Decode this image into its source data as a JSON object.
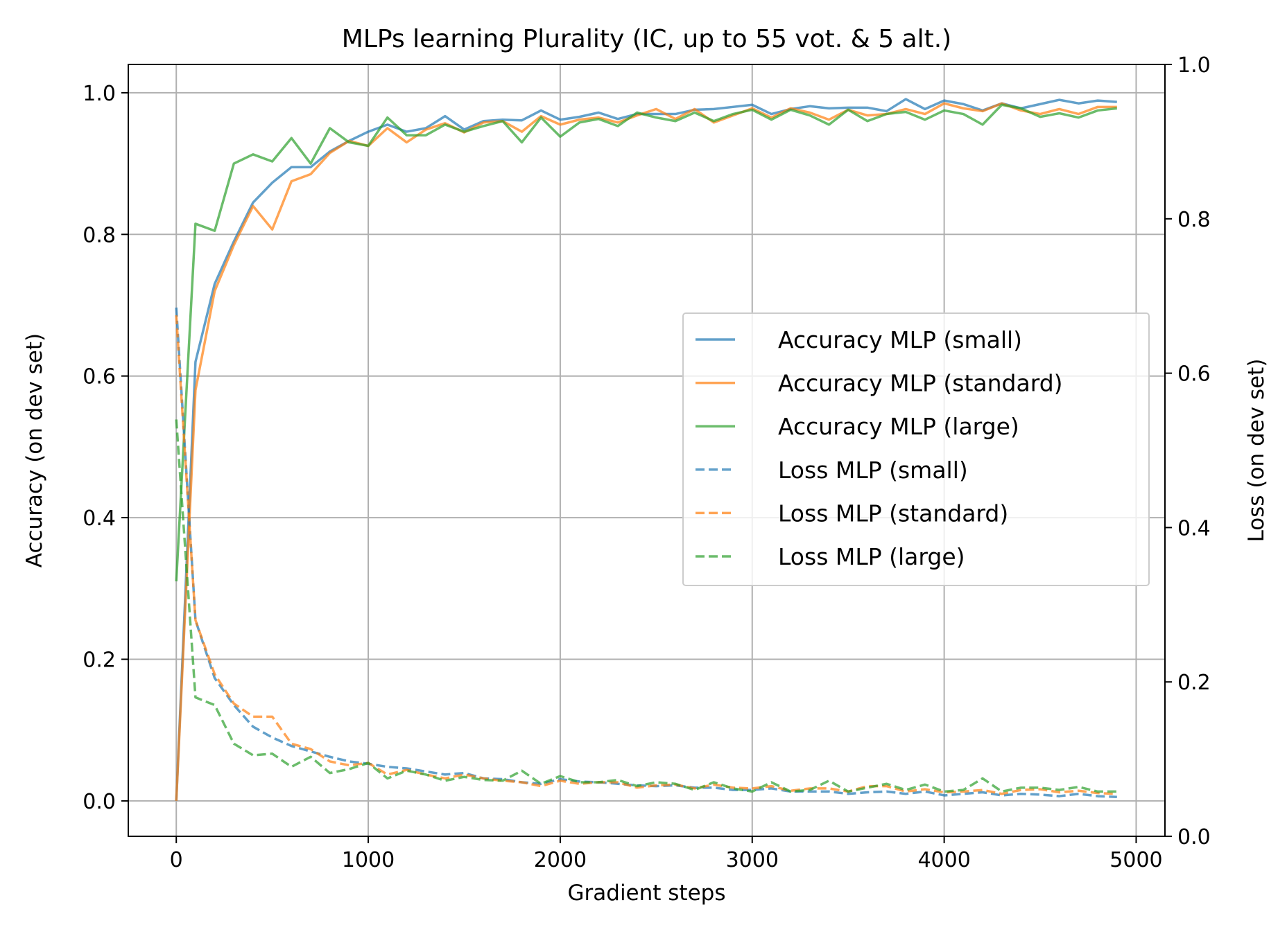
{
  "chart_data": {
    "type": "line",
    "title": "MLPs learning Plurality (IC, up to 55 vot. & 5 alt.)",
    "xlabel": "Gradient steps",
    "ylabel": "Accuracy (on dev set)",
    "ylabel_right": "Loss (on dev set)",
    "xlim": [
      -250,
      5150
    ],
    "ylim": [
      -0.05,
      1.04
    ],
    "ylim_right": [
      0.0,
      1.0
    ],
    "xticks": [
      0,
      1000,
      2000,
      3000,
      4000,
      5000
    ],
    "yticks": [
      0.0,
      0.2,
      0.4,
      0.6,
      0.8,
      1.0
    ],
    "yticks_right": [
      0.0,
      0.2,
      0.4,
      0.6,
      0.8,
      1.0
    ],
    "xtick_labels": [
      "0",
      "1000",
      "2000",
      "3000",
      "4000",
      "5000"
    ],
    "ytick_labels": [
      "0.0",
      "0.2",
      "0.4",
      "0.6",
      "0.8",
      "1.0"
    ],
    "ytick_labels_right": [
      "0.0",
      "0.2",
      "0.4",
      "0.6",
      "0.8",
      "1.0"
    ],
    "grid": true,
    "legend_position": "center-right",
    "x": [
      0,
      100,
      200,
      300,
      400,
      500,
      600,
      700,
      800,
      900,
      1000,
      1100,
      1200,
      1300,
      1400,
      1500,
      1600,
      1700,
      1800,
      1900,
      2000,
      2100,
      2200,
      2300,
      2400,
      2500,
      2600,
      2700,
      2800,
      2900,
      3000,
      3100,
      3200,
      3300,
      3400,
      3500,
      3600,
      3700,
      3800,
      3900,
      4000,
      4100,
      4200,
      4300,
      4400,
      4500,
      4600,
      4700,
      4800,
      4900
    ],
    "series": [
      {
        "name": "Accuracy MLP (small)",
        "axis": "left",
        "style": "solid",
        "color": "#1f77b4",
        "values": [
          0.0,
          0.62,
          0.73,
          0.79,
          0.845,
          0.873,
          0.895,
          0.895,
          0.917,
          0.932,
          0.945,
          0.955,
          0.945,
          0.95,
          0.967,
          0.948,
          0.96,
          0.962,
          0.961,
          0.975,
          0.962,
          0.966,
          0.972,
          0.963,
          0.97,
          0.97,
          0.97,
          0.976,
          0.977,
          0.98,
          0.983,
          0.97,
          0.977,
          0.981,
          0.978,
          0.979,
          0.979,
          0.974,
          0.991,
          0.977,
          0.989,
          0.984,
          0.975,
          0.985,
          0.978,
          0.984,
          0.99,
          0.985,
          0.989,
          0.987
        ]
      },
      {
        "name": "Accuracy MLP (standard)",
        "axis": "left",
        "style": "solid",
        "color": "#ff7f0e",
        "values": [
          0.0,
          0.58,
          0.72,
          0.785,
          0.84,
          0.807,
          0.875,
          0.885,
          0.915,
          0.932,
          0.925,
          0.95,
          0.93,
          0.948,
          0.957,
          0.944,
          0.958,
          0.96,
          0.945,
          0.967,
          0.955,
          0.962,
          0.965,
          0.958,
          0.968,
          0.977,
          0.963,
          0.977,
          0.958,
          0.968,
          0.978,
          0.965,
          0.978,
          0.972,
          0.962,
          0.976,
          0.968,
          0.97,
          0.977,
          0.97,
          0.985,
          0.978,
          0.974,
          0.985,
          0.975,
          0.97,
          0.977,
          0.97,
          0.98,
          0.98
        ]
      },
      {
        "name": "Accuracy MLP (large)",
        "axis": "left",
        "style": "solid",
        "color": "#2ca02c",
        "values": [
          0.31,
          0.815,
          0.805,
          0.9,
          0.913,
          0.903,
          0.936,
          0.9,
          0.95,
          0.93,
          0.925,
          0.965,
          0.94,
          0.94,
          0.955,
          0.945,
          0.953,
          0.96,
          0.93,
          0.965,
          0.938,
          0.958,
          0.963,
          0.953,
          0.972,
          0.965,
          0.96,
          0.972,
          0.96,
          0.97,
          0.976,
          0.962,
          0.976,
          0.968,
          0.955,
          0.976,
          0.96,
          0.97,
          0.973,
          0.962,
          0.975,
          0.97,
          0.955,
          0.983,
          0.978,
          0.966,
          0.971,
          0.965,
          0.975,
          0.978
        ]
      },
      {
        "name": "Loss MLP (small)",
        "axis": "right",
        "style": "dashed",
        "color": "#1f77b4",
        "values": [
          0.685,
          0.28,
          0.205,
          0.17,
          0.142,
          0.128,
          0.117,
          0.11,
          0.103,
          0.097,
          0.094,
          0.09,
          0.088,
          0.084,
          0.08,
          0.082,
          0.075,
          0.074,
          0.07,
          0.068,
          0.074,
          0.071,
          0.07,
          0.068,
          0.066,
          0.065,
          0.066,
          0.063,
          0.063,
          0.06,
          0.06,
          0.062,
          0.058,
          0.058,
          0.058,
          0.055,
          0.057,
          0.058,
          0.055,
          0.058,
          0.053,
          0.055,
          0.057,
          0.053,
          0.055,
          0.054,
          0.052,
          0.055,
          0.052,
          0.051
        ]
      },
      {
        "name": "Loss MLP (standard)",
        "axis": "right",
        "style": "dashed",
        "color": "#ff7f0e",
        "values": [
          0.675,
          0.28,
          0.21,
          0.172,
          0.155,
          0.155,
          0.12,
          0.113,
          0.097,
          0.092,
          0.095,
          0.08,
          0.086,
          0.08,
          0.075,
          0.08,
          0.075,
          0.072,
          0.07,
          0.065,
          0.072,
          0.068,
          0.07,
          0.07,
          0.063,
          0.066,
          0.067,
          0.062,
          0.067,
          0.063,
          0.062,
          0.065,
          0.059,
          0.062,
          0.062,
          0.058,
          0.065,
          0.065,
          0.058,
          0.061,
          0.057,
          0.058,
          0.06,
          0.055,
          0.06,
          0.061,
          0.057,
          0.059,
          0.056,
          0.055
        ]
      },
      {
        "name": "Loss MLP (large)",
        "axis": "right",
        "style": "dashed",
        "color": "#2ca02c",
        "values": [
          0.54,
          0.18,
          0.17,
          0.12,
          0.105,
          0.107,
          0.09,
          0.103,
          0.082,
          0.087,
          0.095,
          0.075,
          0.085,
          0.08,
          0.072,
          0.077,
          0.073,
          0.072,
          0.085,
          0.068,
          0.078,
          0.07,
          0.07,
          0.073,
          0.065,
          0.07,
          0.068,
          0.06,
          0.07,
          0.062,
          0.058,
          0.07,
          0.058,
          0.06,
          0.072,
          0.058,
          0.063,
          0.068,
          0.06,
          0.067,
          0.058,
          0.06,
          0.075,
          0.058,
          0.063,
          0.063,
          0.06,
          0.064,
          0.058,
          0.058
        ]
      }
    ]
  }
}
